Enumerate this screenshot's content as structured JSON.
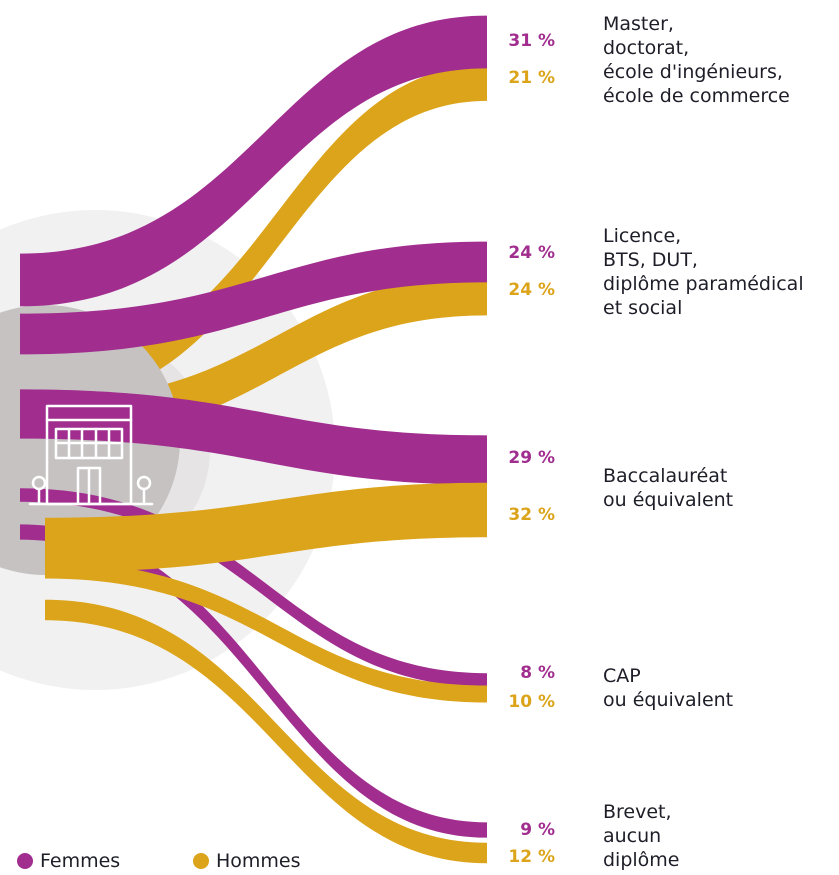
{
  "colors": {
    "femmes": "#a12e8f",
    "hommes": "#dca41a",
    "circle": "#c6c2c2",
    "halo_outer": "#f2f1f1",
    "halo_inner": "#e6e4e4",
    "icon": "#ffffff",
    "text": "#1e1e28"
  },
  "center_icon": "building-icon",
  "categories": [
    {
      "label": "Master,\ndoctorat,\nécole d'ingénieurs,\nécole de commerce",
      "femmes": "31 %",
      "hommes": "21 %"
    },
    {
      "label": "Licence,\nBTS, DUT,\ndiplôme paramédical\net social",
      "femmes": "24 %",
      "hommes": "24 %"
    },
    {
      "label": "Baccalauréat\nou équivalent",
      "femmes": "29 %",
      "hommes": "32 %"
    },
    {
      "label": "CAP\nou équivalent",
      "femmes": "8 %",
      "hommes": "10 %"
    },
    {
      "label": "Brevet,\naucun\ndiplôme",
      "femmes": "9 %",
      "hommes": "12 %"
    }
  ],
  "chart_data": {
    "type": "sankey",
    "categories": [
      "Master, doctorat, école d'ingénieurs, école de commerce",
      "Licence, BTS, DUT, diplôme paramédical et social",
      "Baccalauréat ou équivalent",
      "CAP ou équivalent",
      "Brevet, aucun diplôme"
    ],
    "series": [
      {
        "name": "Femmes",
        "values": [
          31,
          24,
          29,
          8,
          9
        ]
      },
      {
        "name": "Hommes",
        "values": [
          21,
          24,
          32,
          10,
          12
        ]
      }
    ],
    "unit": "%"
  },
  "legend": {
    "femmes": "Femmes",
    "hommes": "Hommes"
  }
}
